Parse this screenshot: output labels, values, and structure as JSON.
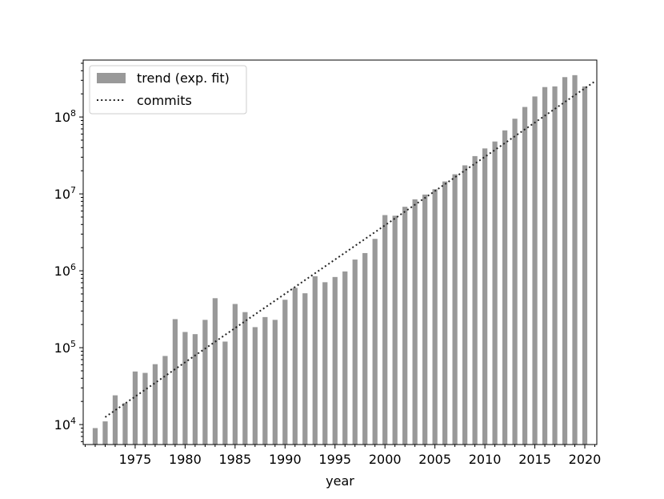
{
  "chart_data": {
    "type": "bar",
    "title": "",
    "xlabel": "year",
    "ylabel": "",
    "y_scale": "log",
    "ylim": [
      5500,
      550000000
    ],
    "xlim": [
      1969.8,
      2021.2
    ],
    "x_ticks": [
      1975,
      1980,
      1985,
      1990,
      1995,
      2000,
      2005,
      2010,
      2015,
      2020
    ],
    "x_tick_labels": [
      "1975",
      "1980",
      "1985",
      "1990",
      "1995",
      "2000",
      "2005",
      "2010",
      "2015",
      "2020"
    ],
    "y_ticks": [
      {
        "value": 10000,
        "base": "10",
        "exp": "4"
      },
      {
        "value": 100000,
        "base": "10",
        "exp": "5"
      },
      {
        "value": 1000000,
        "base": "10",
        "exp": "6"
      },
      {
        "value": 10000000,
        "base": "10",
        "exp": "7"
      },
      {
        "value": 100000000,
        "base": "10",
        "exp": "8"
      }
    ],
    "grid": false,
    "legend_position": "top-left",
    "legend": [
      {
        "label": "trend (exp. fit)",
        "style": "bar"
      },
      {
        "label": "commits",
        "style": "dotted-line"
      }
    ],
    "bar_color": "#999999",
    "line_color": "#222222",
    "bars": {
      "x": [
        1971,
        1972,
        1973,
        1974,
        1975,
        1976,
        1977,
        1978,
        1979,
        1980,
        1981,
        1982,
        1983,
        1984,
        1985,
        1986,
        1987,
        1988,
        1989,
        1990,
        1991,
        1992,
        1993,
        1994,
        1995,
        1996,
        1997,
        1998,
        1999,
        2000,
        2001,
        2002,
        2003,
        2004,
        2005,
        2006,
        2007,
        2008,
        2009,
        2010,
        2011,
        2012,
        2013,
        2014,
        2015,
        2016,
        2017,
        2018,
        2019,
        2020
      ],
      "values": [
        9000,
        11000,
        24000,
        19000,
        49000,
        47000,
        61000,
        78000,
        235000,
        160000,
        150000,
        230000,
        440000,
        120000,
        370000,
        290000,
        185000,
        250000,
        230000,
        420000,
        600000,
        510000,
        850000,
        710000,
        830000,
        980000,
        1400000,
        1700000,
        2600000,
        5300000,
        5200000,
        6800000,
        8500000,
        9800000,
        11500000,
        14500000,
        18000000,
        23500000,
        31000000,
        39000000,
        48000000,
        67000000,
        95000000,
        135000000,
        185000000,
        245000000,
        250000000,
        330000000,
        350000000,
        250000000
      ]
    },
    "trend_line": {
      "x": [
        1972,
        2021
      ],
      "values": [
        12500,
        290000000
      ]
    }
  }
}
